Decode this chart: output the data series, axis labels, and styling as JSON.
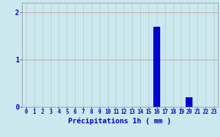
{
  "hours": [
    0,
    1,
    2,
    3,
    4,
    5,
    6,
    7,
    8,
    9,
    10,
    11,
    12,
    13,
    14,
    15,
    16,
    17,
    18,
    19,
    20,
    21,
    22,
    23
  ],
  "values": [
    0,
    0,
    0,
    0,
    0,
    0,
    0,
    0,
    0,
    0,
    0,
    0,
    0,
    0,
    0,
    0,
    1.7,
    0,
    0,
    0,
    0.2,
    0,
    0,
    0
  ],
  "bar_color": "#0000dd",
  "bg_color": "#cce8ee",
  "grid_color_h": "#c8a8a8",
  "grid_color_v": "#aacccc",
  "xlabel": "Précipitations 1h ( mm )",
  "xlabel_color": "#0000cc",
  "xlabel_fontsize": 7.5,
  "tick_color": "#0000cc",
  "ytick_fontsize": 7,
  "xtick_fontsize": 5.5,
  "ylim": [
    0,
    2.2
  ],
  "yticks": [
    0,
    1,
    2
  ],
  "xlim": [
    -0.5,
    23.5
  ]
}
